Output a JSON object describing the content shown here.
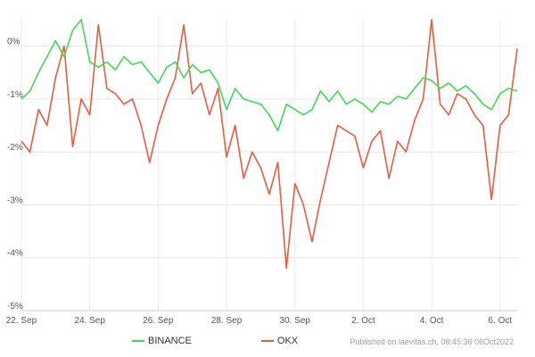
{
  "chart_data": {
    "type": "line",
    "x_start": "2022-09-22",
    "x_end": "2022-10-06T12:00",
    "xlim": [
      "2022-09-22",
      "2022-10-06T12:00"
    ],
    "ylim": [
      -5,
      0.5
    ],
    "y_ticks": [
      {
        "value": 0,
        "label": "0%"
      },
      {
        "value": -1,
        "label": "-1%"
      },
      {
        "value": -2,
        "label": "-2%"
      },
      {
        "value": -3,
        "label": "-3%"
      },
      {
        "value": -4,
        "label": "-4%"
      },
      {
        "value": -5,
        "label": "-5%"
      }
    ],
    "x_ticks": [
      {
        "date": "2022-09-22",
        "label": "22. Sep"
      },
      {
        "date": "2022-09-24",
        "label": "24. Sep"
      },
      {
        "date": "2022-09-26",
        "label": "26. Sep"
      },
      {
        "date": "2022-09-28",
        "label": "28. Sep"
      },
      {
        "date": "2022-09-30",
        "label": "30. Sep"
      },
      {
        "date": "2022-10-02",
        "label": "2. Oct"
      },
      {
        "date": "2022-10-04",
        "label": "4. Oct"
      },
      {
        "date": "2022-10-06",
        "label": "6. Oct"
      }
    ],
    "grid": {
      "x": true,
      "y": true
    },
    "legend": "bottom",
    "series": [
      {
        "name": "BINANCE",
        "color": "#3ddc53",
        "points": [
          [
            "2022-09-22T00:00",
            -1.0
          ],
          [
            "2022-09-22T06:00",
            -0.85
          ],
          [
            "2022-09-22T12:00",
            -0.5
          ],
          [
            "2022-09-22T18:00",
            -0.2
          ],
          [
            "2022-09-23T00:00",
            0.1
          ],
          [
            "2022-09-23T06:00",
            -0.2
          ],
          [
            "2022-09-23T12:00",
            0.3
          ],
          [
            "2022-09-23T18:00",
            0.5
          ],
          [
            "2022-09-24T00:00",
            -0.3
          ],
          [
            "2022-09-24T06:00",
            -0.4
          ],
          [
            "2022-09-24T12:00",
            -0.3
          ],
          [
            "2022-09-24T18:00",
            -0.45
          ],
          [
            "2022-09-25T00:00",
            -0.2
          ],
          [
            "2022-09-25T06:00",
            -0.35
          ],
          [
            "2022-09-25T12:00",
            -0.3
          ],
          [
            "2022-09-25T18:00",
            -0.5
          ],
          [
            "2022-09-26T00:00",
            -0.7
          ],
          [
            "2022-09-26T06:00",
            -0.4
          ],
          [
            "2022-09-26T12:00",
            -0.3
          ],
          [
            "2022-09-26T18:00",
            -0.6
          ],
          [
            "2022-09-27T00:00",
            -0.35
          ],
          [
            "2022-09-27T06:00",
            -0.5
          ],
          [
            "2022-09-27T12:00",
            -0.45
          ],
          [
            "2022-09-27T18:00",
            -0.7
          ],
          [
            "2022-09-28T00:00",
            -1.2
          ],
          [
            "2022-09-28T06:00",
            -0.8
          ],
          [
            "2022-09-28T12:00",
            -1.0
          ],
          [
            "2022-09-28T18:00",
            -1.05
          ],
          [
            "2022-09-29T00:00",
            -1.1
          ],
          [
            "2022-09-29T06:00",
            -1.3
          ],
          [
            "2022-09-29T12:00",
            -1.6
          ],
          [
            "2022-09-29T18:00",
            -1.1
          ],
          [
            "2022-09-30T00:00",
            -1.2
          ],
          [
            "2022-09-30T06:00",
            -1.3
          ],
          [
            "2022-09-30T12:00",
            -1.2
          ],
          [
            "2022-09-30T18:00",
            -0.85
          ],
          [
            "2022-10-01T00:00",
            -1.05
          ],
          [
            "2022-10-01T06:00",
            -0.85
          ],
          [
            "2022-10-01T12:00",
            -1.1
          ],
          [
            "2022-10-01T18:00",
            -1.0
          ],
          [
            "2022-10-02T00:00",
            -1.1
          ],
          [
            "2022-10-02T06:00",
            -1.25
          ],
          [
            "2022-10-02T12:00",
            -1.05
          ],
          [
            "2022-10-02T18:00",
            -1.1
          ],
          [
            "2022-10-03T00:00",
            -0.95
          ],
          [
            "2022-10-03T06:00",
            -1.0
          ],
          [
            "2022-10-03T12:00",
            -0.8
          ],
          [
            "2022-10-03T18:00",
            -0.6
          ],
          [
            "2022-10-04T00:00",
            -0.65
          ],
          [
            "2022-10-04T06:00",
            -0.8
          ],
          [
            "2022-10-04T12:00",
            -0.7
          ],
          [
            "2022-10-04T18:00",
            -0.85
          ],
          [
            "2022-10-05T00:00",
            -0.75
          ],
          [
            "2022-10-05T06:00",
            -0.9
          ],
          [
            "2022-10-05T12:00",
            -1.1
          ],
          [
            "2022-10-05T18:00",
            -1.2
          ],
          [
            "2022-10-06T00:00",
            -0.9
          ],
          [
            "2022-10-06T06:00",
            -0.8
          ],
          [
            "2022-10-06T12:00",
            -0.85
          ]
        ]
      },
      {
        "name": "OKX",
        "color": "#ee5a3c",
        "points": [
          [
            "2022-09-22T00:00",
            -1.8
          ],
          [
            "2022-09-22T06:00",
            -2.0
          ],
          [
            "2022-09-22T12:00",
            -1.2
          ],
          [
            "2022-09-22T18:00",
            -1.5
          ],
          [
            "2022-09-23T00:00",
            -0.6
          ],
          [
            "2022-09-23T06:00",
            0.0
          ],
          [
            "2022-09-23T12:00",
            -1.9
          ],
          [
            "2022-09-23T18:00",
            -1.0
          ],
          [
            "2022-09-24T00:00",
            -1.3
          ],
          [
            "2022-09-24T06:00",
            0.4
          ],
          [
            "2022-09-24T12:00",
            -0.8
          ],
          [
            "2022-09-24T18:00",
            -0.9
          ],
          [
            "2022-09-25T00:00",
            -1.1
          ],
          [
            "2022-09-25T06:00",
            -1.0
          ],
          [
            "2022-09-25T12:00",
            -1.5
          ],
          [
            "2022-09-25T18:00",
            -2.2
          ],
          [
            "2022-09-26T00:00",
            -1.5
          ],
          [
            "2022-09-26T06:00",
            -1.0
          ],
          [
            "2022-09-26T12:00",
            -0.6
          ],
          [
            "2022-09-26T18:00",
            0.4
          ],
          [
            "2022-09-27T00:00",
            -0.9
          ],
          [
            "2022-09-27T06:00",
            -0.7
          ],
          [
            "2022-09-27T12:00",
            -1.3
          ],
          [
            "2022-09-27T18:00",
            -0.8
          ],
          [
            "2022-09-28T00:00",
            -2.1
          ],
          [
            "2022-09-28T06:00",
            -1.5
          ],
          [
            "2022-09-28T12:00",
            -2.5
          ],
          [
            "2022-09-28T18:00",
            -2.0
          ],
          [
            "2022-09-29T00:00",
            -2.3
          ],
          [
            "2022-09-29T06:00",
            -2.8
          ],
          [
            "2022-09-29T12:00",
            -2.2
          ],
          [
            "2022-09-29T18:00",
            -4.2
          ],
          [
            "2022-09-30T00:00",
            -2.6
          ],
          [
            "2022-09-30T06:00",
            -3.0
          ],
          [
            "2022-09-30T12:00",
            -3.7
          ],
          [
            "2022-09-30T18:00",
            -2.9
          ],
          [
            "2022-10-01T00:00",
            -2.2
          ],
          [
            "2022-10-01T06:00",
            -1.5
          ],
          [
            "2022-10-01T12:00",
            -1.6
          ],
          [
            "2022-10-01T18:00",
            -1.7
          ],
          [
            "2022-10-02T00:00",
            -2.3
          ],
          [
            "2022-10-02T06:00",
            -1.8
          ],
          [
            "2022-10-02T12:00",
            -1.6
          ],
          [
            "2022-10-02T18:00",
            -2.5
          ],
          [
            "2022-10-03T00:00",
            -1.8
          ],
          [
            "2022-10-03T06:00",
            -2.0
          ],
          [
            "2022-10-03T12:00",
            -1.4
          ],
          [
            "2022-10-03T18:00",
            -1.0
          ],
          [
            "2022-10-04T00:00",
            0.5
          ],
          [
            "2022-10-04T06:00",
            -1.1
          ],
          [
            "2022-10-04T12:00",
            -1.3
          ],
          [
            "2022-10-04T18:00",
            -0.9
          ],
          [
            "2022-10-05T00:00",
            -1.0
          ],
          [
            "2022-10-05T06:00",
            -1.3
          ],
          [
            "2022-10-05T12:00",
            -1.5
          ],
          [
            "2022-10-05T18:00",
            -2.9
          ],
          [
            "2022-10-06T00:00",
            -1.5
          ],
          [
            "2022-10-06T06:00",
            -1.3
          ],
          [
            "2022-10-06T12:00",
            -0.05
          ]
        ]
      }
    ]
  },
  "legend": {
    "items": [
      {
        "label": "BINANCE",
        "color": "#3ddc53"
      },
      {
        "label": "OKX",
        "color": "#ee5a3c"
      }
    ]
  },
  "footer": {
    "published_text": "Published on laevitas.ch, 08:45:36 06Oct2022"
  }
}
